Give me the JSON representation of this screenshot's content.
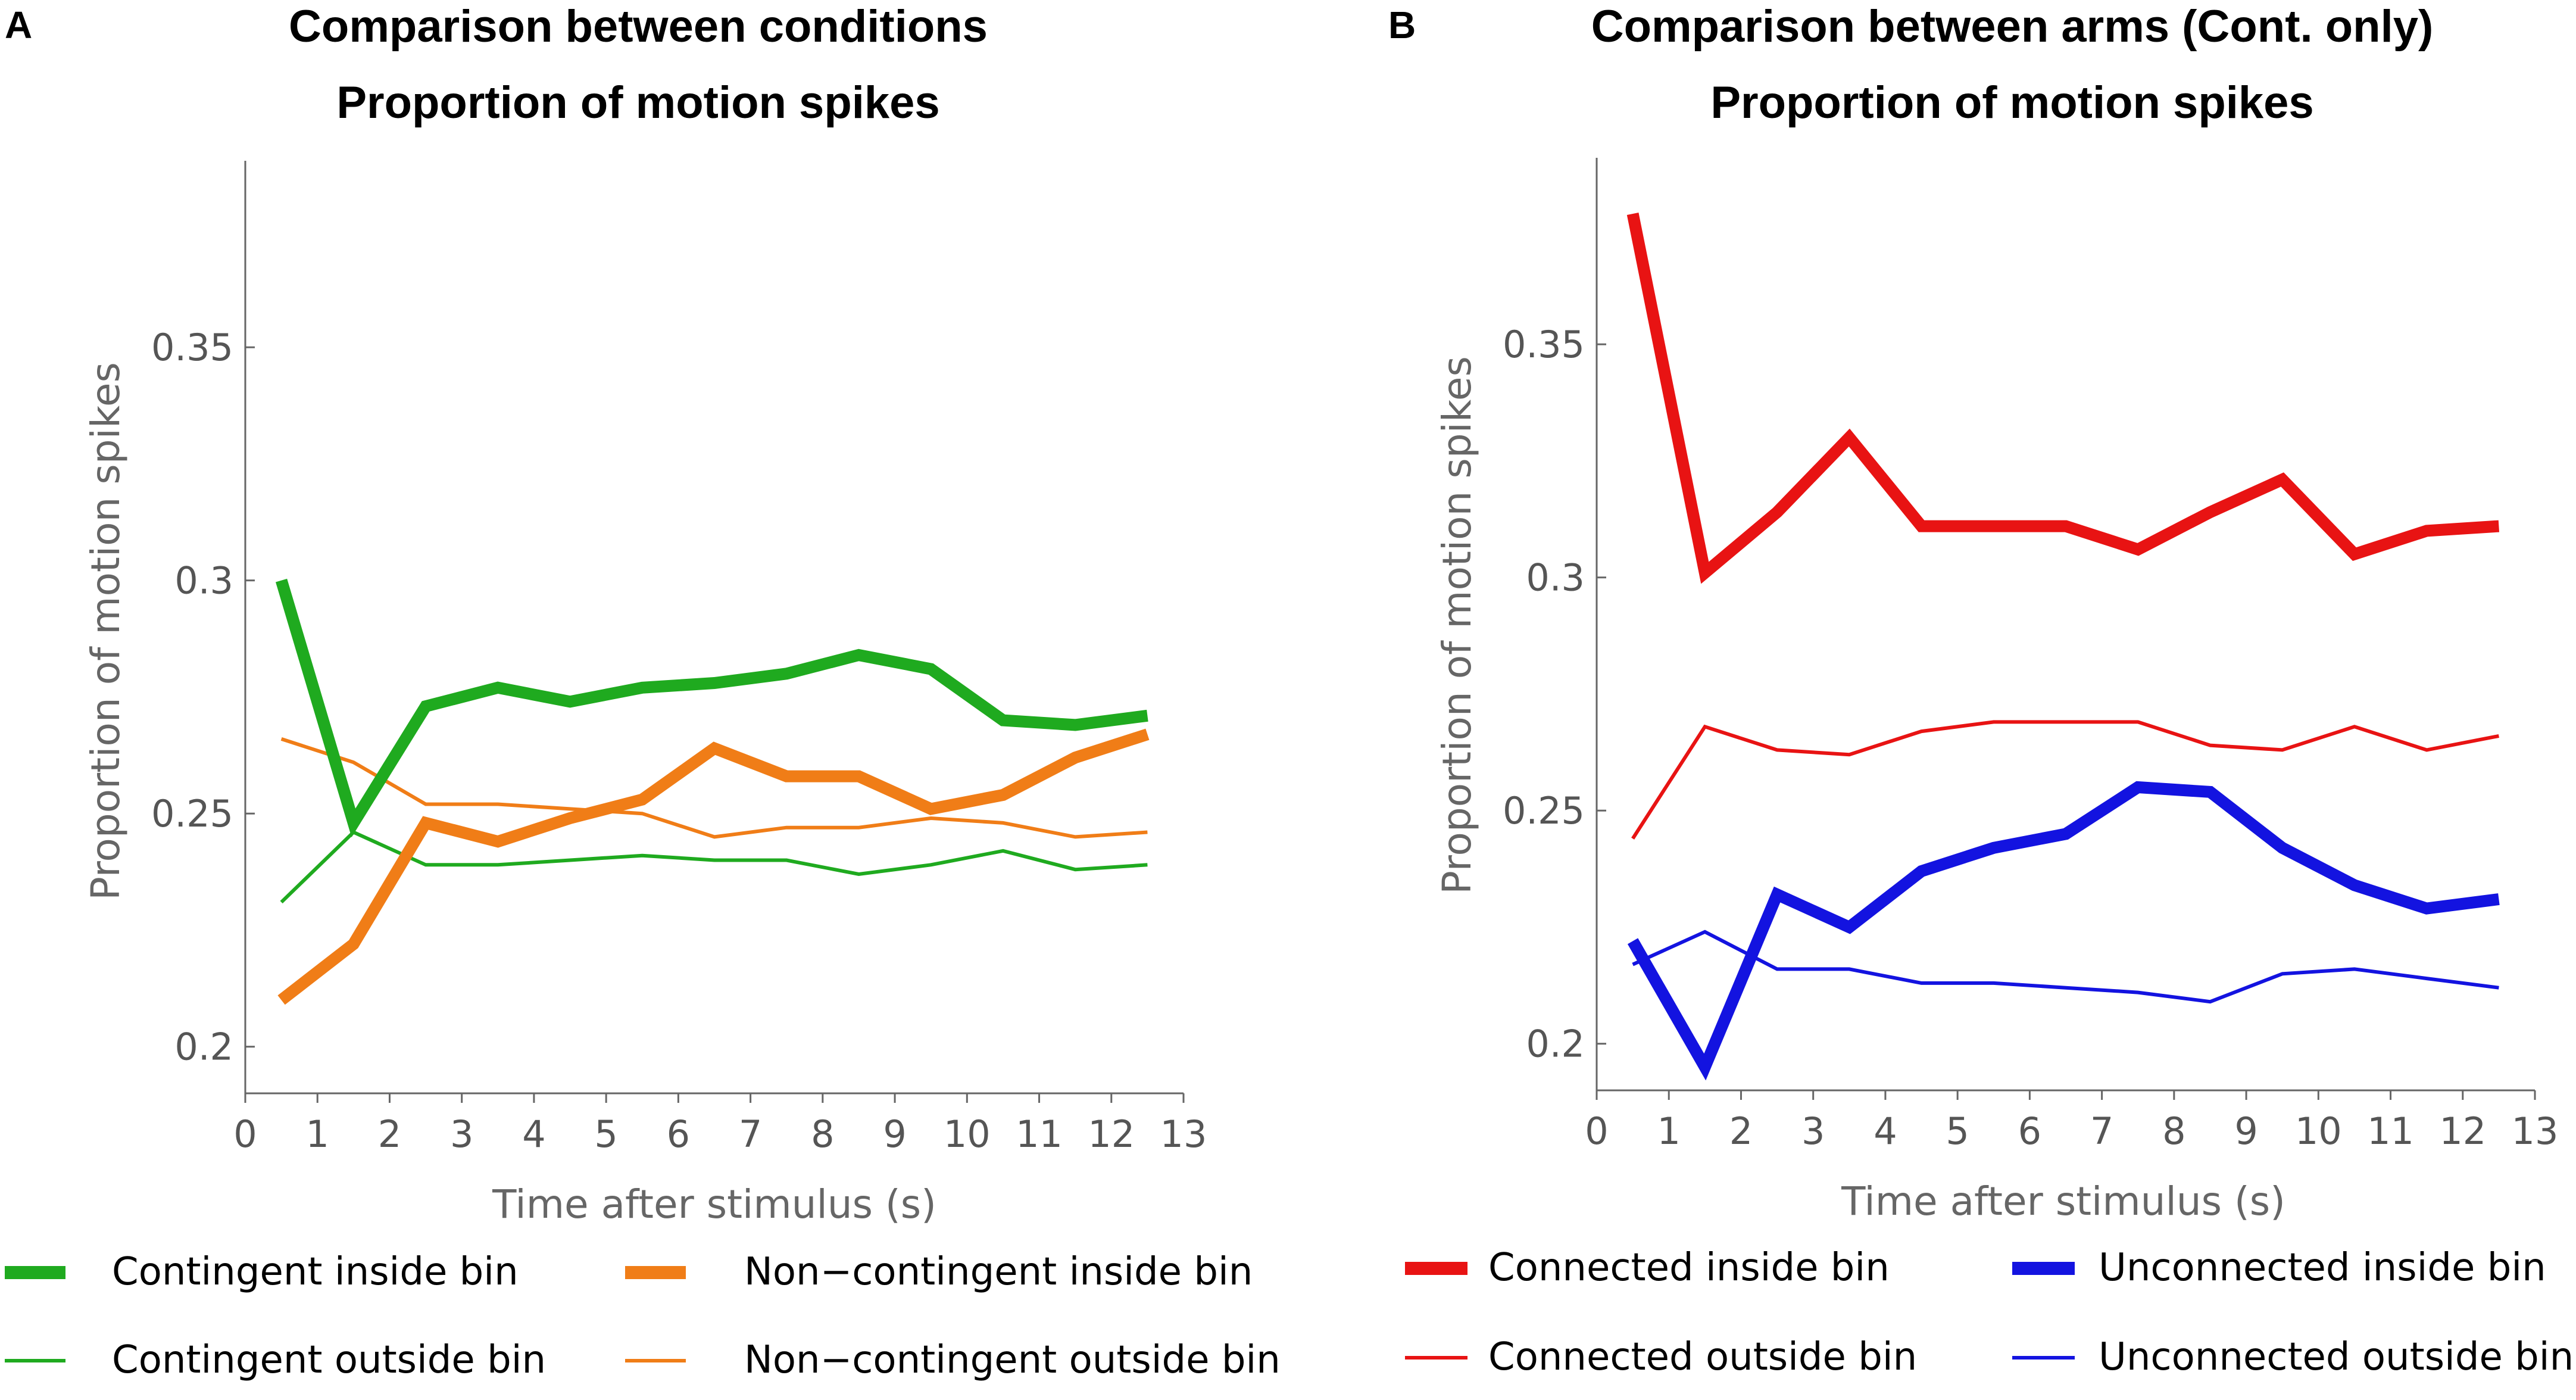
{
  "chart_data": [
    {
      "panel": "A",
      "type": "line",
      "title": "Comparison between conditions",
      "subtitle": "Proportion of motion spikes",
      "xlabel": "Time after stimulus (s)",
      "ylabel": "Proportion of motion spikes",
      "xlim": [
        0,
        13
      ],
      "ylim": [
        0.19,
        0.39
      ],
      "xticks": [
        0,
        1,
        2,
        3,
        4,
        5,
        6,
        7,
        8,
        9,
        10,
        11,
        12,
        13
      ],
      "yticks": [
        0.2,
        0.25,
        0.3,
        0.35
      ],
      "ytick_labels": [
        "0.2",
        "0.25",
        "0.3",
        "0.35"
      ],
      "x": [
        0.5,
        1.5,
        2.5,
        3.5,
        4.5,
        5.5,
        6.5,
        7.5,
        8.5,
        9.5,
        10.5,
        11.5,
        12.5
      ],
      "series": [
        {
          "name": "Contingent inside bin",
          "color": "#1faa1f",
          "weight": "thick",
          "values": [
            0.3,
            0.248,
            0.273,
            0.277,
            0.274,
            0.277,
            0.278,
            0.28,
            0.284,
            0.281,
            0.27,
            0.269,
            0.271
          ]
        },
        {
          "name": "Non−contingent inside bin",
          "color": "#f07d17",
          "weight": "thick",
          "values": [
            0.21,
            0.222,
            0.248,
            0.244,
            0.249,
            0.253,
            0.264,
            0.258,
            0.258,
            0.251,
            0.254,
            0.262,
            0.267
          ]
        },
        {
          "name": "Contingent outside bin",
          "color": "#1faa1f",
          "weight": "thin",
          "values": [
            0.231,
            0.246,
            0.239,
            0.239,
            0.24,
            0.241,
            0.24,
            0.24,
            0.237,
            0.239,
            0.242,
            0.238,
            0.239
          ]
        },
        {
          "name": "Non−contingent outside bin",
          "color": "#f07d17",
          "weight": "thin",
          "values": [
            0.266,
            0.261,
            0.252,
            0.252,
            0.251,
            0.25,
            0.245,
            0.247,
            0.247,
            0.249,
            0.248,
            0.245,
            0.246
          ]
        }
      ],
      "legend": [
        [
          "Contingent inside bin",
          "Non−contingent inside bin"
        ],
        [
          "Contingent outside bin",
          "Non−contingent outside bin"
        ]
      ]
    },
    {
      "panel": "B",
      "type": "line",
      "title": "Comparison between arms (Cont. only)",
      "subtitle": "Proportion of motion spikes",
      "xlabel": "Time after stimulus (s)",
      "ylabel": "Proportion of motion spikes",
      "xlim": [
        0,
        13
      ],
      "ylim": [
        0.19,
        0.39
      ],
      "xticks": [
        0,
        1,
        2,
        3,
        4,
        5,
        6,
        7,
        8,
        9,
        10,
        11,
        12,
        13
      ],
      "yticks": [
        0.2,
        0.25,
        0.3,
        0.35
      ],
      "ytick_labels": [
        "0.2",
        "0.25",
        "0.3",
        "0.35"
      ],
      "x": [
        0.5,
        1.5,
        2.5,
        3.5,
        4.5,
        5.5,
        6.5,
        7.5,
        8.5,
        9.5,
        10.5,
        11.5,
        12.5
      ],
      "series": [
        {
          "name": "Connected inside bin",
          "color": "#e81313",
          "weight": "thick",
          "values": [
            0.378,
            0.301,
            0.314,
            0.33,
            0.311,
            0.311,
            0.311,
            0.306,
            0.314,
            0.321,
            0.305,
            0.31,
            0.311
          ]
        },
        {
          "name": "Unconnected inside bin",
          "color": "#1313e0",
          "weight": "thick",
          "values": [
            0.222,
            0.195,
            0.232,
            0.225,
            0.237,
            0.242,
            0.245,
            0.255,
            0.254,
            0.242,
            0.234,
            0.229,
            0.231
          ]
        },
        {
          "name": "Connected outside bin",
          "color": "#e81313",
          "weight": "thin",
          "values": [
            0.244,
            0.268,
            0.263,
            0.262,
            0.267,
            0.269,
            0.269,
            0.269,
            0.264,
            0.263,
            0.268,
            0.263,
            0.266
          ]
        },
        {
          "name": "Unconnected outside bin",
          "color": "#1313e0",
          "weight": "thin",
          "values": [
            0.217,
            0.224,
            0.216,
            0.216,
            0.213,
            0.213,
            0.212,
            0.211,
            0.209,
            0.215,
            0.216,
            0.214,
            0.212
          ]
        }
      ],
      "legend": [
        [
          "Connected inside bin",
          "Unconnected inside bin"
        ],
        [
          "Connected outside bin",
          "Unconnected outside bin"
        ]
      ]
    }
  ]
}
